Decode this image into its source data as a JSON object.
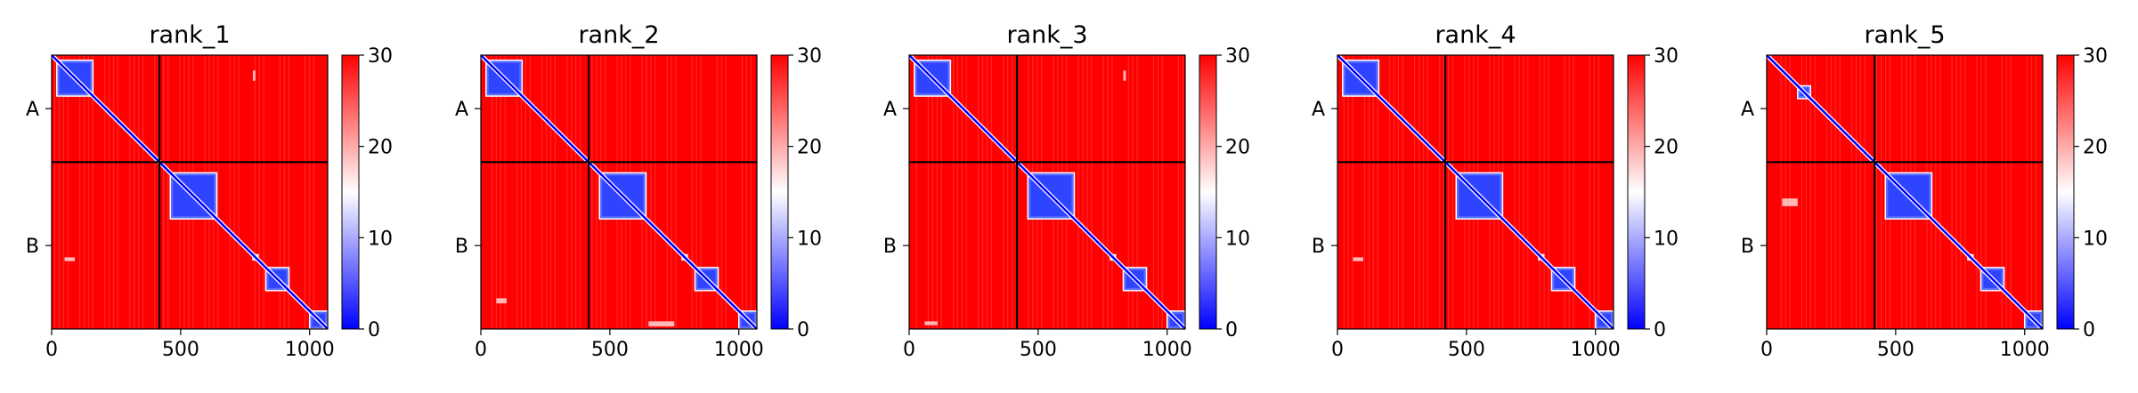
{
  "figure": {
    "colors": {
      "low": "#0000ff",
      "mid": "#ffffff",
      "high": "#ff0000",
      "frame": "#000000"
    }
  },
  "chart_data": [
    {
      "type": "heatmap",
      "title": "rank_1",
      "xticks": [
        "0",
        "500",
        "1000"
      ],
      "xtick_values": [
        0,
        500,
        1000
      ],
      "xlim": [
        0,
        1070
      ],
      "chain_labels": [
        "A",
        "B"
      ],
      "chain_boundary": 418,
      "colorbar": {
        "min": 0,
        "max": 30,
        "ticks": [
          "0",
          "10",
          "20",
          "30"
        ],
        "cmap": "bwr"
      },
      "domains": [
        [
          20,
          160
        ],
        [
          460,
          640
        ],
        [
          780,
          800
        ],
        [
          830,
          920
        ],
        [
          1000,
          1070
        ]
      ],
      "hotspots": [
        [
          780,
          60,
          10,
          40
        ],
        [
          50,
          790,
          40,
          15
        ]
      ]
    },
    {
      "type": "heatmap",
      "title": "rank_2",
      "xticks": [
        "0",
        "500",
        "1000"
      ],
      "xtick_values": [
        0,
        500,
        1000
      ],
      "xlim": [
        0,
        1070
      ],
      "chain_labels": [
        "A",
        "B"
      ],
      "chain_boundary": 418,
      "colorbar": {
        "min": 0,
        "max": 30,
        "ticks": [
          "0",
          "10",
          "20",
          "30"
        ],
        "cmap": "bwr"
      },
      "domains": [
        [
          20,
          160
        ],
        [
          460,
          640
        ],
        [
          780,
          800
        ],
        [
          830,
          920
        ],
        [
          1000,
          1070
        ]
      ],
      "hotspots": [
        [
          650,
          1040,
          100,
          20
        ],
        [
          60,
          950,
          40,
          20
        ]
      ]
    },
    {
      "type": "heatmap",
      "title": "rank_3",
      "xticks": [
        "0",
        "500",
        "1000"
      ],
      "xtick_values": [
        0,
        500,
        1000
      ],
      "xlim": [
        0,
        1070
      ],
      "chain_labels": [
        "A",
        "B"
      ],
      "chain_boundary": 418,
      "colorbar": {
        "min": 0,
        "max": 30,
        "ticks": [
          "0",
          "10",
          "20",
          "30"
        ],
        "cmap": "bwr"
      },
      "domains": [
        [
          20,
          160
        ],
        [
          460,
          640
        ],
        [
          780,
          800
        ],
        [
          830,
          920
        ],
        [
          1000,
          1070
        ]
      ],
      "hotspots": [
        [
          830,
          60,
          10,
          40
        ],
        [
          60,
          1040,
          50,
          15
        ]
      ]
    },
    {
      "type": "heatmap",
      "title": "rank_4",
      "xticks": [
        "0",
        "500",
        "1000"
      ],
      "xtick_values": [
        0,
        500,
        1000
      ],
      "xlim": [
        0,
        1070
      ],
      "chain_labels": [
        "A",
        "B"
      ],
      "chain_boundary": 418,
      "colorbar": {
        "min": 0,
        "max": 30,
        "ticks": [
          "0",
          "10",
          "20",
          "30"
        ],
        "cmap": "bwr"
      },
      "domains": [
        [
          20,
          160
        ],
        [
          460,
          640
        ],
        [
          780,
          800
        ],
        [
          830,
          920
        ],
        [
          1000,
          1070
        ]
      ],
      "hotspots": [
        [
          60,
          790,
          40,
          15
        ]
      ]
    },
    {
      "type": "heatmap",
      "title": "rank_5",
      "xticks": [
        "0",
        "500",
        "1000"
      ],
      "xtick_values": [
        0,
        500,
        1000
      ],
      "xlim": [
        0,
        1070
      ],
      "chain_labels": [
        "A",
        "B"
      ],
      "chain_boundary": 418,
      "colorbar": {
        "min": 0,
        "max": 30,
        "ticks": [
          "0",
          "10",
          "20",
          "30"
        ],
        "cmap": "bwr"
      },
      "domains": [
        [
          120,
          170
        ],
        [
          460,
          640
        ],
        [
          780,
          800
        ],
        [
          830,
          920
        ],
        [
          1000,
          1070
        ]
      ],
      "hotspots": [
        [
          60,
          560,
          60,
          30
        ]
      ]
    }
  ]
}
